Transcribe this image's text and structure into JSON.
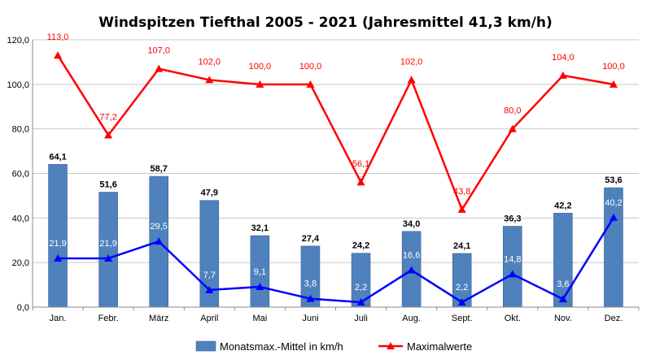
{
  "chart_data": {
    "type": "bar",
    "title": "Windspitzen  Tiefthal 2005 - 2021 (Jahresmittel 41,3 km/h)",
    "xlabel": "",
    "ylabel": "",
    "ylim": [
      0,
      120
    ],
    "yticks": [
      0,
      20,
      40,
      60,
      80,
      100,
      120
    ],
    "ytick_labels": [
      "0,0",
      "20,0",
      "40,0",
      "60,0",
      "80,0",
      "100,0",
      "120,0"
    ],
    "grid": true,
    "legend_position": "bottom",
    "categories": [
      "Jan.",
      "Febr.",
      "März",
      "April",
      "Mai",
      "Juni",
      "Juli",
      "Aug.",
      "Sept.",
      "Okt.",
      "Nov.",
      "Dez."
    ],
    "series": [
      {
        "name": "Monatsmax.-Mittel in km/h",
        "type": "bar",
        "color": "#4f81bd",
        "values": [
          64.1,
          51.6,
          58.7,
          47.9,
          32.1,
          27.4,
          24.2,
          34.0,
          24.1,
          36.3,
          42.2,
          53.6
        ],
        "labels": [
          "64,1",
          "51,6",
          "58,7",
          "47,9",
          "32,1",
          "27,4",
          "24,2",
          "34,0",
          "24,1",
          "36,3",
          "42,2",
          "53,6"
        ]
      },
      {
        "name": "Maximalwerte",
        "type": "line",
        "color": "#ff0000",
        "values": [
          113.0,
          77.2,
          107.0,
          102.0,
          100.0,
          100.0,
          56.1,
          102.0,
          43.8,
          80.0,
          104.0,
          100.0
        ],
        "labels": [
          "113,0",
          "77,2",
          "107,0",
          "102,0",
          "100,0",
          "100,0",
          "56,1",
          "102,0",
          "43,8",
          "80,0",
          "104,0",
          "100,0"
        ]
      },
      {
        "type": "line",
        "color": "#0000ff",
        "values": [
          21.9,
          21.9,
          29.5,
          7.7,
          9.1,
          3.8,
          2.2,
          16.6,
          2.2,
          14.8,
          3.6,
          40.2
        ],
        "labels": [
          "21,9",
          "21,9",
          "29,5",
          "7,7",
          "9,1",
          "3,8",
          "2,2",
          "16,6",
          "2,2",
          "14,8",
          "3,6",
          "40,2"
        ]
      }
    ]
  }
}
